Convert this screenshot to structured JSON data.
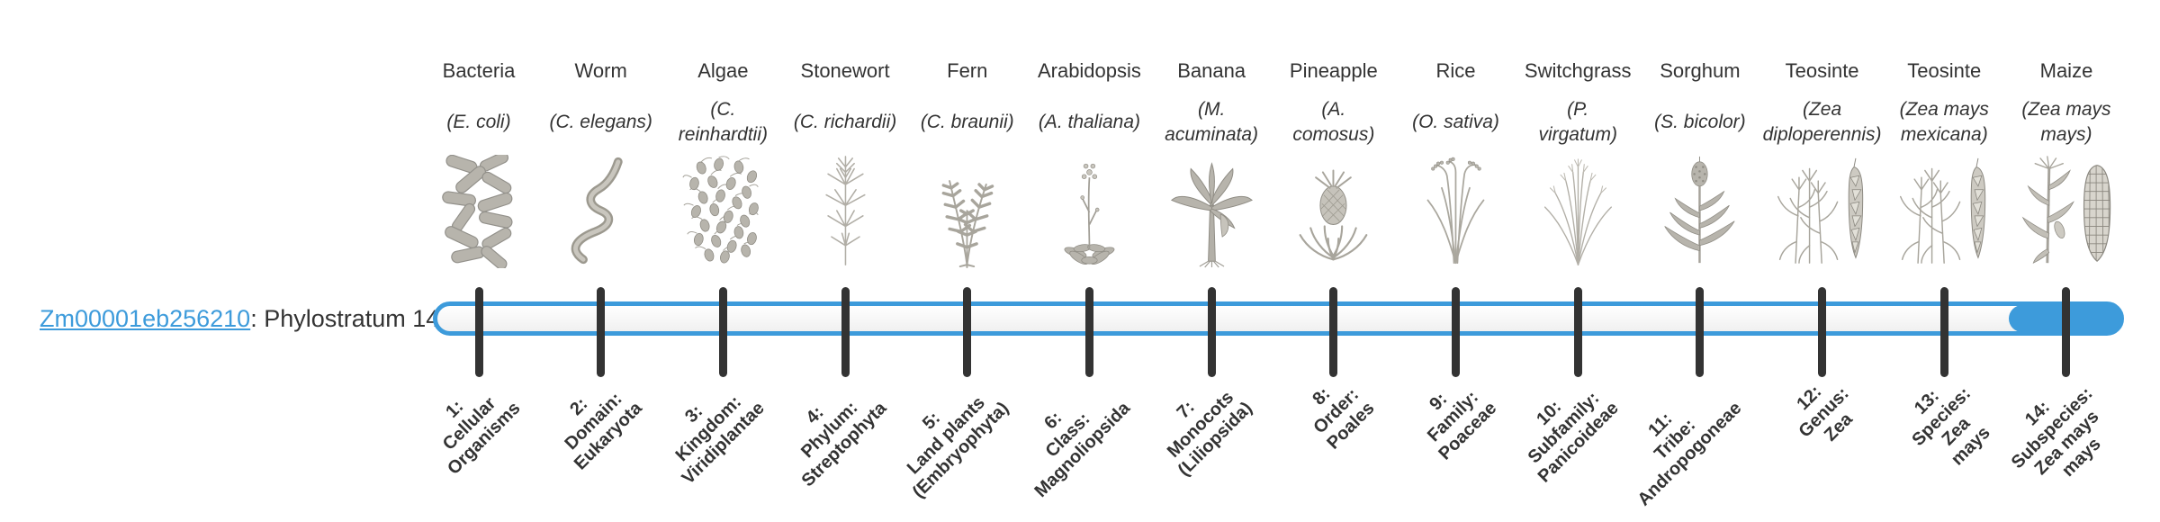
{
  "gene_label": {
    "gene_id": "Zm00001eb256210",
    "description": ": Phylostratum 14"
  },
  "colors": {
    "accent_blue": "#3d9bdb",
    "tick_dark": "#333333",
    "text": "#333333",
    "illustration_gray": "#b7b4ac"
  },
  "timeline": {
    "total_phylostrata": 14,
    "filled_phylostratum": 14
  },
  "phylostrata": [
    {
      "number": 1,
      "common_name": "Bacteria",
      "latin_name": "(E. coli)",
      "icon": "bacteria-illustration",
      "tick_label": "1:\nCellular\nOrganisms"
    },
    {
      "number": 2,
      "common_name": "Worm",
      "latin_name": "(C. elegans)",
      "icon": "worm-illustration",
      "tick_label": "2:\nDomain:\nEukaryota"
    },
    {
      "number": 3,
      "common_name": "Algae",
      "latin_name": "(C.\nreinhardtii)",
      "icon": "algae-illustration",
      "tick_label": "3:\nKingdom:\nViridiplantae"
    },
    {
      "number": 4,
      "common_name": "Stonewort",
      "latin_name": "(C. richardii)",
      "icon": "stonewort-illustration",
      "tick_label": "4:\nPhylum:\nStreptophyta"
    },
    {
      "number": 5,
      "common_name": "Fern",
      "latin_name": "(C. braunii)",
      "icon": "fern-illustration",
      "tick_label": "5:\nLand plants\n(Embryophyta)"
    },
    {
      "number": 6,
      "common_name": "Arabidopsis",
      "latin_name": "(A. thaliana)",
      "icon": "arabidopsis-illustration",
      "tick_label": "6:\nClass:\nMagnoliopsida"
    },
    {
      "number": 7,
      "common_name": "Banana",
      "latin_name": "(M.\nacuminata)",
      "icon": "banana-illustration",
      "tick_label": "7:\nMonocots\n(Liliopsida)"
    },
    {
      "number": 8,
      "common_name": "Pineapple",
      "latin_name": "(A.\ncomosus)",
      "icon": "pineapple-illustration",
      "tick_label": "8:\nOrder:\nPoales"
    },
    {
      "number": 9,
      "common_name": "Rice",
      "latin_name": "(O. sativa)",
      "icon": "rice-illustration",
      "tick_label": "9:\nFamily:\nPoaceae"
    },
    {
      "number": 10,
      "common_name": "Switchgrass",
      "latin_name": "(P.\nvirgatum)",
      "icon": "switchgrass-illustration",
      "tick_label": "10:\nSubfamily:\nPanicoideae"
    },
    {
      "number": 11,
      "common_name": "Sorghum",
      "latin_name": "(S. bicolor)",
      "icon": "sorghum-illustration",
      "tick_label": "11:\nTribe:\nAndropogoneae"
    },
    {
      "number": 12,
      "common_name": "Teosinte",
      "latin_name": "(Zea\ndiploperennis)",
      "icon": "teosinte-illustration",
      "tick_label": "12:\nGenus:\nZea"
    },
    {
      "number": 13,
      "common_name": "Teosinte",
      "latin_name": "(Zea mays\nmexicana)",
      "icon": "teosinte-illustration",
      "tick_label": "13:\nSpecies:\nZea\nmays"
    },
    {
      "number": 14,
      "common_name": "Maize",
      "latin_name": "(Zea mays\nmays)",
      "icon": "maize-illustration",
      "tick_label": "14:\nSubspecies:\nZea mays\nmays"
    }
  ]
}
